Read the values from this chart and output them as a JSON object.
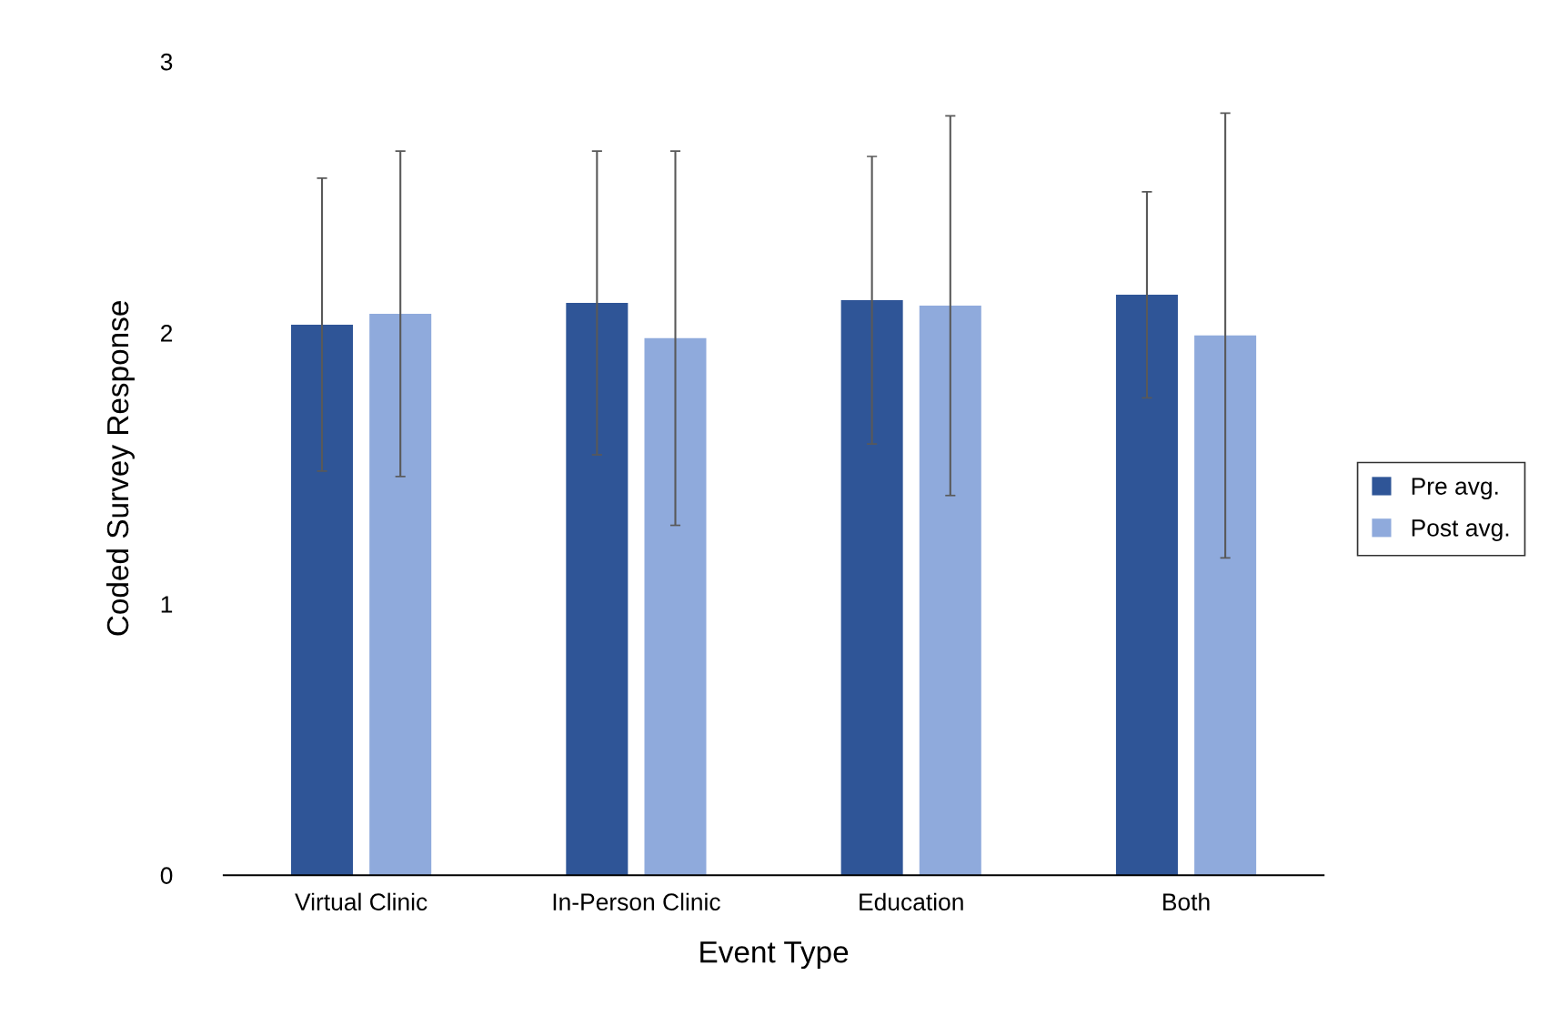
{
  "chart_data": {
    "type": "bar",
    "xlabel": "Event Type",
    "ylabel": "Coded Survey Response",
    "categories": [
      "Virtual Clinic",
      "In-Person Clinic",
      "Education",
      "Both"
    ],
    "series": [
      {
        "name": "Pre avg.",
        "color": "#2f5597",
        "values": [
          2.03,
          2.11,
          2.12,
          2.14
        ],
        "errors": [
          0.54,
          0.56,
          0.53,
          0.38
        ]
      },
      {
        "name": "Post avg.",
        "color": "#8faadc",
        "values": [
          2.07,
          1.98,
          2.1,
          1.99
        ],
        "errors": [
          0.6,
          0.69,
          0.7,
          0.82
        ]
      }
    ],
    "ylim": [
      0,
      3
    ],
    "yticks": [
      0,
      1,
      2,
      3
    ],
    "grid": false,
    "legend": "right"
  }
}
